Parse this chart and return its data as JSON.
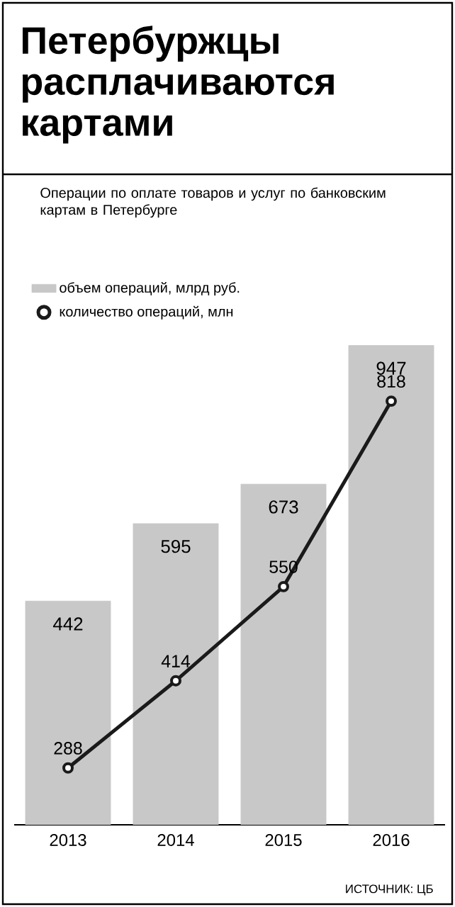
{
  "chart_data": {
    "type": "bar",
    "title": "Петербуржцы расплачиваются картами",
    "subtitle": "Операции по оплате товаров и услуг по банковским картам в Петербурге",
    "categories": [
      "2013",
      "2014",
      "2015",
      "2016"
    ],
    "series": [
      {
        "name": "объем операций, млрд руб.",
        "color": "#c8c8c8",
        "values": [
          442,
          595,
          673,
          947
        ]
      },
      {
        "name": "количество операций, млн",
        "type": "line",
        "axis": "y2",
        "color": "#1a1a1a",
        "marker": "circle",
        "values": [
          288,
          414,
          550,
          818
        ]
      }
    ],
    "data_labels": true,
    "legend": "top left",
    "annotations": [
      "ИСТОЧНИК: ЦБ"
    ]
  }
}
